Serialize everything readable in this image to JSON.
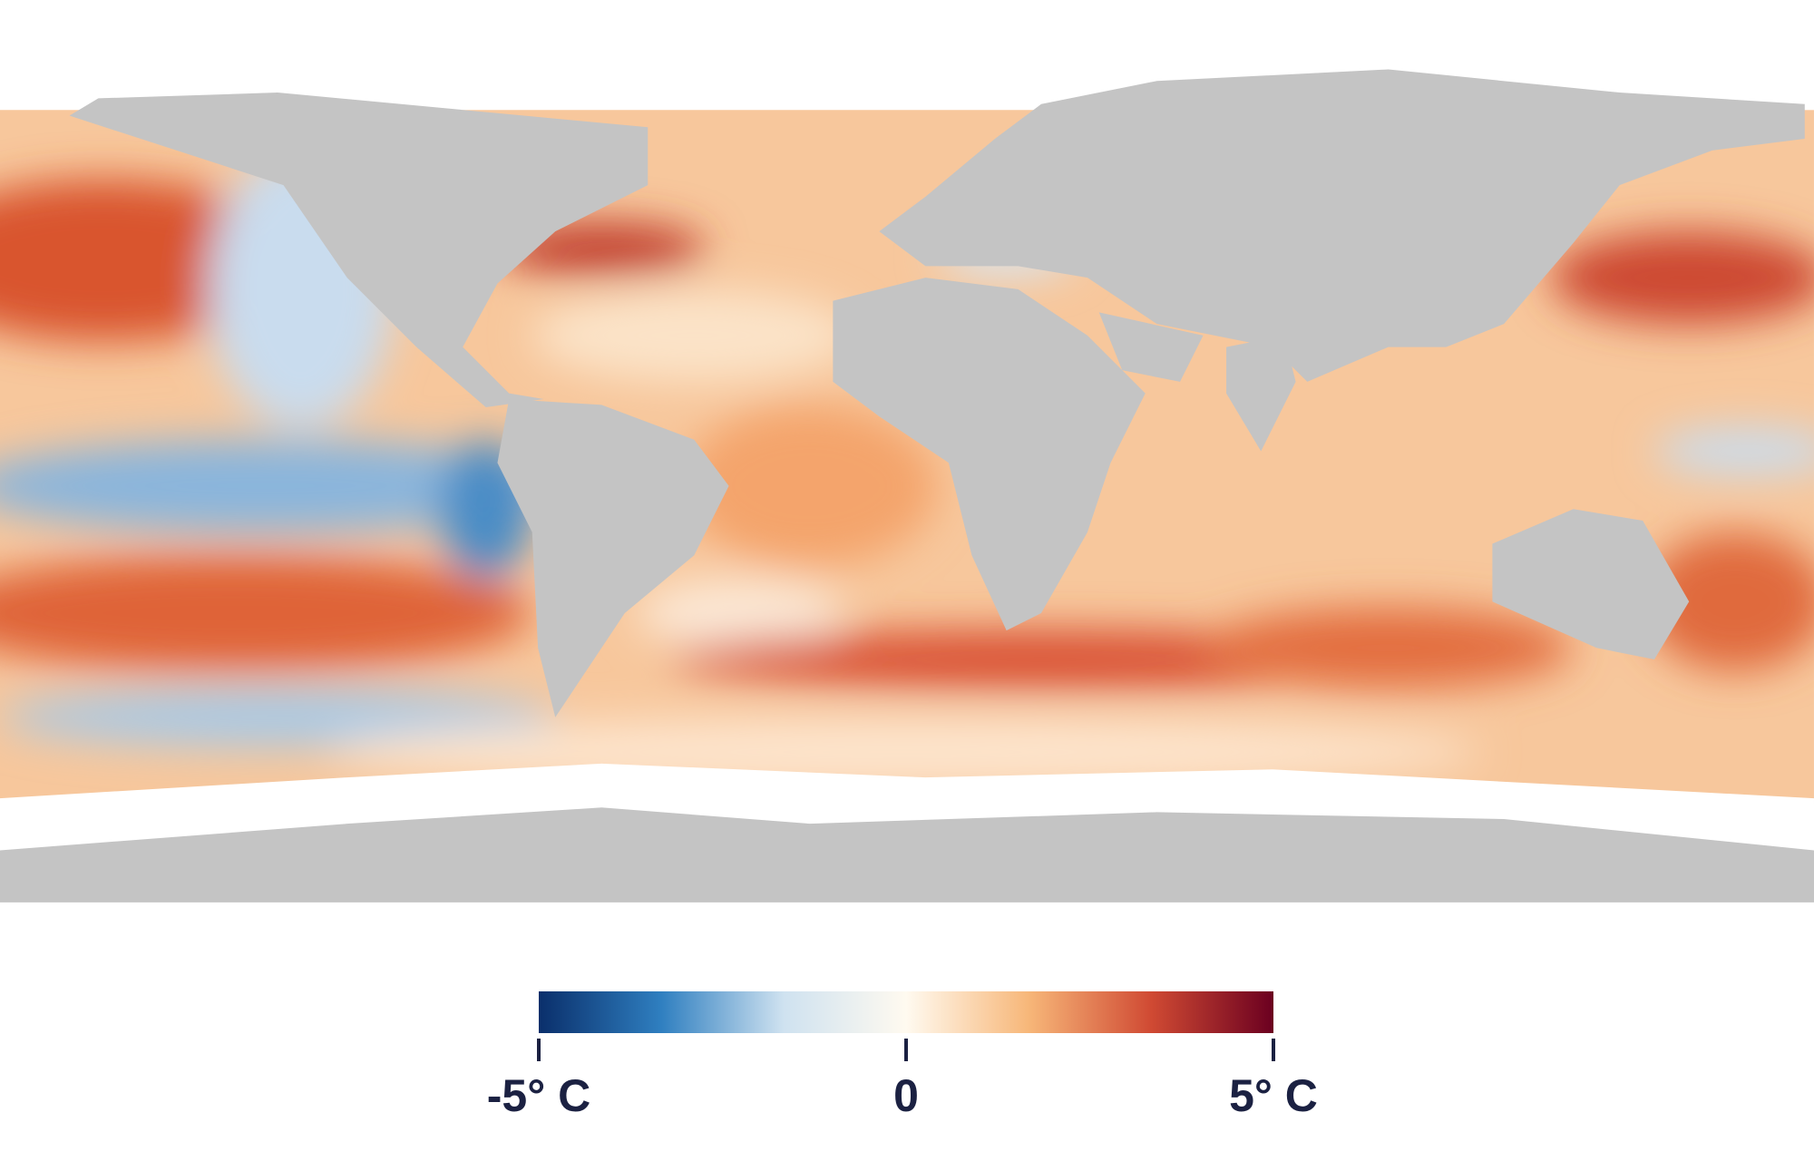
{
  "colorbar": {
    "lim": [
      -5,
      5
    ],
    "ticks": [
      {
        "value": -5,
        "label": "-5° C"
      },
      0,
      {
        "value": 5,
        "label": "5° C"
      }
    ],
    "colors": [
      "#0a2f6b",
      "#2f7fc0",
      "#cfe2f0",
      "#fffaf0",
      "#f7b779",
      "#d04a33",
      "#6b0020"
    ]
  }
}
